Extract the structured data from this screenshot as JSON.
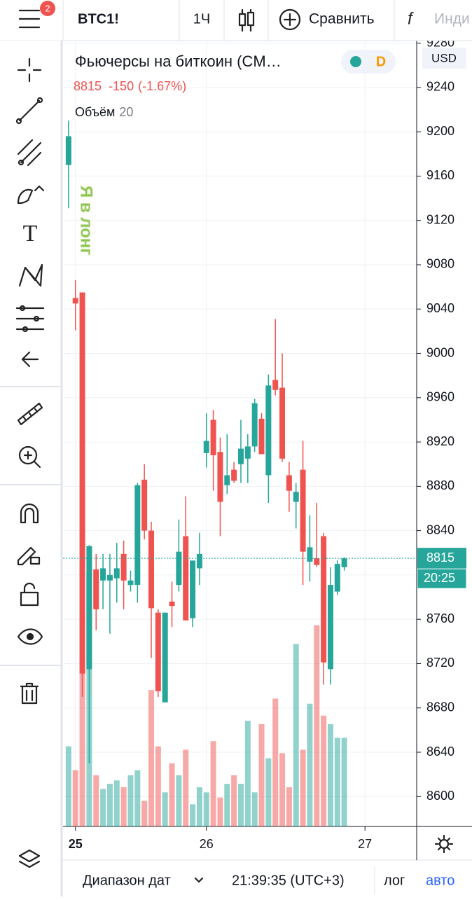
{
  "toolbar": {
    "badge": "2",
    "symbol": "BTC1!",
    "interval": "1Ч",
    "compare": "Сравнить",
    "indicators": "Инди"
  },
  "legend": {
    "name": "Фьючерсы на биткоин (CM…",
    "price": "8815",
    "change": "-150",
    "change_pct": "(-1.67%)",
    "volume_label": "Объём",
    "volume_value": "20",
    "badge": "D"
  },
  "currency": "USD",
  "bottom_bar": {
    "range": "Диапазон дат",
    "time": "21:39:35 (UTC+3)",
    "log": "лог",
    "auto": "авто"
  },
  "chart_data": {
    "type": "candlestick",
    "annotation": "Я в лонг",
    "last_price": 8815,
    "countdown": "20:25",
    "up_color": "#26a69a",
    "down_color": "#ef5350",
    "open": [
      9170,
      9050,
      9055,
      8715,
      8805,
      8795,
      8795,
      8797,
      8819,
      8791,
      8791,
      8886,
      8840,
      8766,
      8685,
      8776,
      8791,
      8835,
      8761,
      8806,
      8910,
      8940,
      8911,
      8881,
      8895,
      8900,
      8905,
      8916,
      8941,
      8890,
      8976,
      8969,
      8890,
      8866,
      8895,
      8812,
      8815,
      8835,
      8715,
      8785,
      8807
    ],
    "high": [
      9210,
      9066,
      9055,
      8827,
      8819,
      8819,
      8819,
      8829,
      8831,
      8804,
      8883,
      8900,
      8848,
      8769,
      8766,
      8794,
      8850,
      8871,
      8813,
      8838,
      8946,
      8949,
      8924,
      8927,
      8902,
      8940,
      8927,
      8959,
      8946,
      8981,
      9031,
      9000,
      8902,
      8883,
      8921,
      8854,
      8865,
      8838,
      8807,
      8813,
      8816
    ],
    "low": [
      9131,
      9021,
      8690,
      8630,
      8750,
      8769,
      8747,
      8775,
      8769,
      8785,
      8775,
      8832,
      8725,
      8690,
      8685,
      8753,
      8785,
      8759,
      8753,
      8791,
      8897,
      8876,
      8835,
      8873,
      8883,
      8883,
      8883,
      8911,
      8909,
      8865,
      8962,
      8902,
      8857,
      8842,
      8791,
      8794,
      8807,
      8701,
      8701,
      8782,
      8804
    ],
    "close": [
      9196,
      9045,
      8711,
      8826,
      8769,
      8806,
      8800,
      8806,
      8795,
      8795,
      8881,
      8840,
      8770,
      8695,
      8766,
      8772,
      8821,
      8759,
      8813,
      8819,
      8921,
      8908,
      8866,
      8890,
      8885,
      8914,
      8916,
      8955,
      8909,
      8971,
      8967,
      8905,
      8876,
      8875,
      8821,
      8825,
      8809,
      8721,
      8791,
      8810,
      8815
    ],
    "volume": [
      47,
      33,
      200,
      148,
      30,
      22,
      25,
      27,
      23,
      30,
      33,
      15,
      80,
      47,
      20,
      37,
      30,
      45,
      13,
      23,
      20,
      50,
      17,
      25,
      30,
      25,
      62,
      20,
      60,
      40,
      75,
      43,
      23,
      107,
      45,
      72,
      118,
      65,
      60,
      52,
      52
    ],
    "vlim": [
      0,
      460
    ],
    "ylim": [
      8573,
      9281
    ],
    "yticks": [
      8600,
      8640,
      8680,
      8720,
      8760,
      8800,
      8840,
      8880,
      8920,
      8960,
      9000,
      9040,
      9080,
      9120,
      9160,
      9200,
      9240,
      9280
    ],
    "xlim": [
      -0.8,
      50.5
    ],
    "xticks": [
      {
        "value": 1,
        "label": "25"
      },
      {
        "value": 20,
        "label": "26"
      },
      {
        "value": 43,
        "label": "27"
      }
    ],
    "grid": true
  }
}
